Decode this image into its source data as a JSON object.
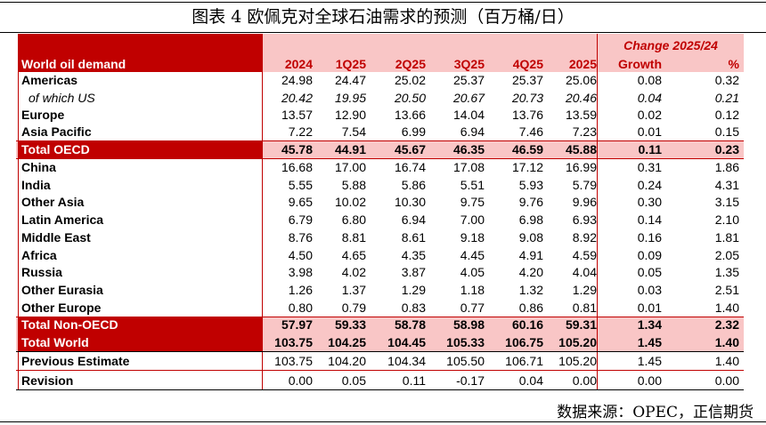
{
  "figure": {
    "title": "图表 4   欧佩克对全球石油需求的预测（百万桶/日）",
    "source": "数据来源：OPEC，正信期货"
  },
  "table": {
    "header": {
      "label": "World oil demand",
      "change_title": "Change 2025/24",
      "columns": [
        "2024",
        "1Q25",
        "2Q25",
        "3Q25",
        "4Q25",
        "2025",
        "Growth",
        "%"
      ]
    },
    "rows": [
      {
        "label": "Americas",
        "values": [
          "24.98",
          "24.47",
          "25.02",
          "25.37",
          "25.37",
          "25.06",
          "0.08",
          "0.32"
        ],
        "kind": "normal"
      },
      {
        "label": "of which US",
        "values": [
          "20.42",
          "19.95",
          "20.50",
          "20.67",
          "20.73",
          "20.46",
          "0.04",
          "0.21"
        ],
        "kind": "sub"
      },
      {
        "label": "Europe",
        "values": [
          "13.57",
          "12.90",
          "13.66",
          "14.04",
          "13.76",
          "13.59",
          "0.02",
          "0.12"
        ],
        "kind": "normal"
      },
      {
        "label": "Asia Pacific",
        "values": [
          "7.22",
          "7.54",
          "6.99",
          "6.94",
          "7.46",
          "7.23",
          "0.01",
          "0.15"
        ],
        "kind": "normal"
      },
      {
        "label": "Total OECD",
        "values": [
          "45.78",
          "44.91",
          "45.67",
          "46.35",
          "46.59",
          "45.88",
          "0.11",
          "0.23"
        ],
        "kind": "total"
      },
      {
        "label": "China",
        "values": [
          "16.68",
          "17.00",
          "16.74",
          "17.08",
          "17.12",
          "16.99",
          "0.31",
          "1.86"
        ],
        "kind": "normal"
      },
      {
        "label": "India",
        "values": [
          "5.55",
          "5.88",
          "5.86",
          "5.51",
          "5.93",
          "5.79",
          "0.24",
          "4.31"
        ],
        "kind": "normal"
      },
      {
        "label": "Other Asia",
        "values": [
          "9.65",
          "10.02",
          "10.30",
          "9.75",
          "9.76",
          "9.96",
          "0.30",
          "3.15"
        ],
        "kind": "normal"
      },
      {
        "label": "Latin America",
        "values": [
          "6.79",
          "6.80",
          "6.94",
          "7.00",
          "6.98",
          "6.93",
          "0.14",
          "2.10"
        ],
        "kind": "normal"
      },
      {
        "label": "Middle East",
        "values": [
          "8.76",
          "8.81",
          "8.61",
          "9.18",
          "9.08",
          "8.92",
          "0.16",
          "1.81"
        ],
        "kind": "normal"
      },
      {
        "label": "Africa",
        "values": [
          "4.50",
          "4.65",
          "4.35",
          "4.45",
          "4.91",
          "4.59",
          "0.09",
          "2.05"
        ],
        "kind": "normal"
      },
      {
        "label": "Russia",
        "values": [
          "3.98",
          "4.02",
          "3.87",
          "4.05",
          "4.20",
          "4.04",
          "0.05",
          "1.35"
        ],
        "kind": "normal"
      },
      {
        "label": "Other Eurasia",
        "values": [
          "1.26",
          "1.37",
          "1.29",
          "1.18",
          "1.32",
          "1.29",
          "0.03",
          "2.51"
        ],
        "kind": "normal"
      },
      {
        "label": "Other Europe",
        "values": [
          "0.80",
          "0.79",
          "0.83",
          "0.77",
          "0.86",
          "0.81",
          "0.01",
          "1.40"
        ],
        "kind": "normal"
      },
      {
        "label": "Total Non-OECD",
        "values": [
          "57.97",
          "59.33",
          "58.78",
          "58.98",
          "60.16",
          "59.31",
          "1.34",
          "2.32"
        ],
        "kind": "total"
      },
      {
        "label": "Total World",
        "values": [
          "103.75",
          "104.25",
          "104.45",
          "105.33",
          "106.75",
          "105.20",
          "1.45",
          "1.40"
        ],
        "kind": "total"
      },
      {
        "label": "Previous Estimate",
        "values": [
          "103.75",
          "104.20",
          "104.34",
          "105.50",
          "106.71",
          "105.20",
          "1.45",
          "1.40"
        ],
        "kind": "normal"
      },
      {
        "label": "Revision",
        "values": [
          "0.00",
          "0.05",
          "0.11",
          "-0.17",
          "0.04",
          "0.00",
          "0.00",
          "0.00"
        ],
        "kind": "normal"
      }
    ]
  },
  "colors": {
    "header_red": "#c00000",
    "total_pink": "#f9c6c6",
    "grid_red": "#c00000"
  }
}
